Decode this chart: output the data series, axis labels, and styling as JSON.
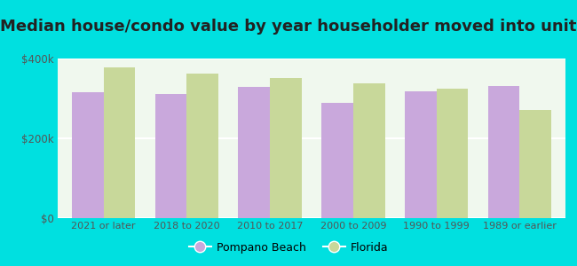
{
  "title": "Median house/condo value by year householder moved into unit",
  "categories": [
    "2021 or later",
    "2018 to 2020",
    "2010 to 2017",
    "2000 to 2009",
    "1990 to 1999",
    "1989 or earlier"
  ],
  "pompano_beach": [
    315000,
    312000,
    330000,
    290000,
    318000,
    332000
  ],
  "florida": [
    378000,
    362000,
    352000,
    338000,
    325000,
    272000
  ],
  "pompano_color": "#c9a8dc",
  "florida_color": "#c8d89a",
  "background_color": "#00e0e0",
  "plot_bg_color": "#f0f8ee",
  "ylim": [
    0,
    400000
  ],
  "yticks": [
    0,
    200000,
    400000
  ],
  "ytick_labels": [
    "$0",
    "$200k",
    "$400k"
  ],
  "bar_width": 0.38,
  "legend_pompano": "Pompano Beach",
  "legend_florida": "Florida",
  "title_fontsize": 13,
  "figsize": [
    6.5,
    3.0
  ],
  "dpi": 100
}
